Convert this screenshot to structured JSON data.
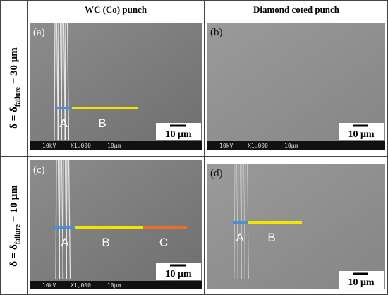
{
  "header": {
    "columns": [
      "WC (Co) punch",
      "Diamond coted punch"
    ]
  },
  "rows": [
    {
      "label": {
        "main": "δ = δ",
        "sub": "failure",
        "tail": " − 30 μm"
      }
    },
    {
      "label": {
        "main": "δ = δ",
        "sub": "failure",
        "tail": " − 10 μm"
      }
    }
  ],
  "panels": [
    {
      "label": "(a)",
      "markers": [
        "A",
        "B"
      ],
      "scale": "10 μm",
      "info": [
        "10kV",
        "X1,000",
        "10μm"
      ]
    },
    {
      "label": "(b)",
      "markers": [],
      "scale": "10 μm",
      "info": [
        "10kV",
        "X1,000",
        "10μm"
      ]
    },
    {
      "label": "(c)",
      "markers": [
        "A",
        "B",
        "C"
      ],
      "scale": "10 μm",
      "info": [
        "10kV",
        "X1,000",
        "10μm"
      ]
    },
    {
      "label": "(d)",
      "markers": [
        "A",
        "B"
      ],
      "scale": "10 μm"
    }
  ]
}
